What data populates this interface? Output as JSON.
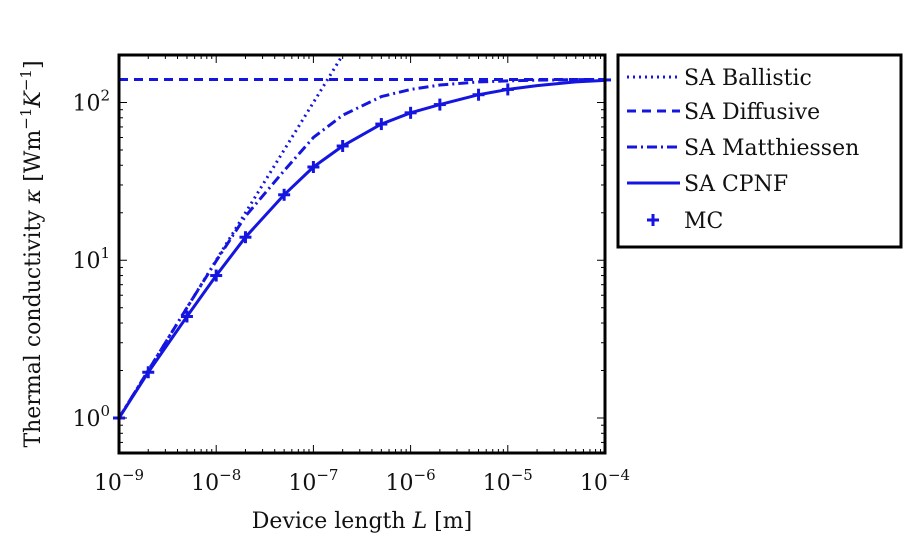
{
  "chart_data": {
    "type": "line",
    "xscale": "log",
    "yscale": "log",
    "xlim": [
      1e-09,
      0.0001
    ],
    "ylim": [
      0.6,
      200
    ],
    "x_ticks": [
      {
        "value": 1e-09,
        "base": "10",
        "exp": "−9"
      },
      {
        "value": 1e-08,
        "base": "10",
        "exp": "−8"
      },
      {
        "value": 1e-07,
        "base": "10",
        "exp": "−7"
      },
      {
        "value": 1e-06,
        "base": "10",
        "exp": "−6"
      },
      {
        "value": 1e-05,
        "base": "10",
        "exp": "−5"
      },
      {
        "value": 0.0001,
        "base": "10",
        "exp": "−4"
      }
    ],
    "y_ticks": [
      {
        "value": 1,
        "base": "10",
        "exp": "0"
      },
      {
        "value": 10,
        "base": "10",
        "exp": "1"
      },
      {
        "value": 100,
        "base": "10",
        "exp": "2"
      }
    ],
    "xlabel": {
      "text": "Device length ",
      "var": "L",
      "unit": " [m]"
    },
    "ylabel": {
      "text": "Thermal conductivity ",
      "var": "κ",
      "unit": " [Wm",
      "exp1": "−1",
      "mid": "K",
      "exp2": "−1",
      "end": "]"
    },
    "legend_position": "outside-right",
    "color": "#1515e0",
    "series": [
      {
        "name": "SA Ballistic",
        "style": "dotted",
        "x": [
          1e-09,
          2e-09,
          5e-09,
          1e-08,
          2e-08,
          5e-08,
          1e-07,
          2e-07
        ],
        "y": [
          1.0,
          2.0,
          5.0,
          10.0,
          20.0,
          50.0,
          100.0,
          200.0
        ]
      },
      {
        "name": "SA Diffusive",
        "style": "dashed",
        "x": [
          1e-09,
          0.0001
        ],
        "y": [
          140,
          140
        ]
      },
      {
        "name": "SA Matthiessen",
        "style": "dashdot",
        "x": [
          1e-09,
          2e-09,
          5e-09,
          1e-08,
          2e-08,
          5e-08,
          1e-07,
          2e-07,
          5e-07,
          1e-06,
          2e-06,
          5e-06,
          1e-05,
          2e-05,
          5e-05,
          0.0001
        ],
        "y": [
          1.0,
          2.0,
          5.0,
          9.9,
          19,
          37,
          60,
          83,
          109,
          121,
          129,
          135,
          137,
          138.5,
          139.5,
          140
        ]
      },
      {
        "name": "SA CPNF",
        "style": "solid",
        "x": [
          1e-09,
          2e-09,
          5e-09,
          1e-08,
          2e-08,
          5e-08,
          1e-07,
          2e-07,
          5e-07,
          1e-06,
          2e-06,
          5e-06,
          1e-05,
          2e-05,
          5e-05,
          0.0001
        ],
        "y": [
          1.0,
          1.95,
          4.4,
          8.0,
          14,
          26,
          39,
          53,
          73,
          86,
          97,
          112,
          121,
          128,
          135,
          138
        ]
      },
      {
        "name": "MC",
        "style": "marker-plus",
        "x": [
          1e-09,
          2e-09,
          5e-09,
          1e-08,
          2e-08,
          5e-08,
          1e-07,
          2e-07,
          5e-07,
          1e-06,
          2e-06,
          5e-06,
          1e-05,
          0.0001
        ],
        "y": [
          1.0,
          1.95,
          4.4,
          8.0,
          14,
          26,
          39,
          53,
          73,
          86,
          97,
          112,
          121,
          139
        ]
      }
    ]
  }
}
